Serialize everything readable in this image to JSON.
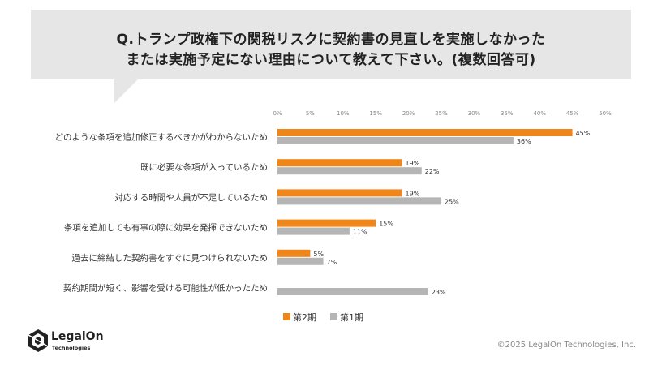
{
  "question": {
    "line1": "Q.トランプ政権下の関税リスクに契約書の見直しを実施しなかった",
    "line2": "または実施予定にない理由について教えて下さい。(複数回答可)"
  },
  "chart_data": {
    "type": "bar",
    "orientation": "horizontal",
    "categories": [
      "どのような条項を追加修正するべきかがわからないため",
      "既に必要な条項が入っているため",
      "対応する時間や人員が不足しているため",
      "条項を追加しても有事の際に効果を発揮できないため",
      "過去に締結した契約書をすぐに見つけられないため",
      "契約期間が短く、影響を受ける可能性が低かったため"
    ],
    "series": [
      {
        "name": "第2期",
        "color": "#f08619",
        "values": [
          45,
          19,
          19,
          15,
          5,
          null
        ],
        "labels": [
          "45%",
          "19%",
          "19%",
          "15%",
          "5%",
          ""
        ]
      },
      {
        "name": "第1期",
        "color": "#b5b5b5",
        "values": [
          36,
          22,
          25,
          11,
          7,
          23
        ],
        "labels": [
          "36%",
          "22%",
          "25%",
          "11%",
          "7%",
          "23%"
        ]
      }
    ],
    "xlim": [
      0,
      50
    ],
    "ticks": [
      "0%",
      "5%",
      "10%",
      "15%",
      "20%",
      "25%",
      "30%",
      "35%",
      "40%",
      "45%",
      "50%"
    ],
    "legend": "bottom-center",
    "grid": false
  },
  "logo": {
    "name": "LegalOn",
    "sub": "Technologies"
  },
  "copyright": "©2025 LegalOn Technologies, Inc."
}
